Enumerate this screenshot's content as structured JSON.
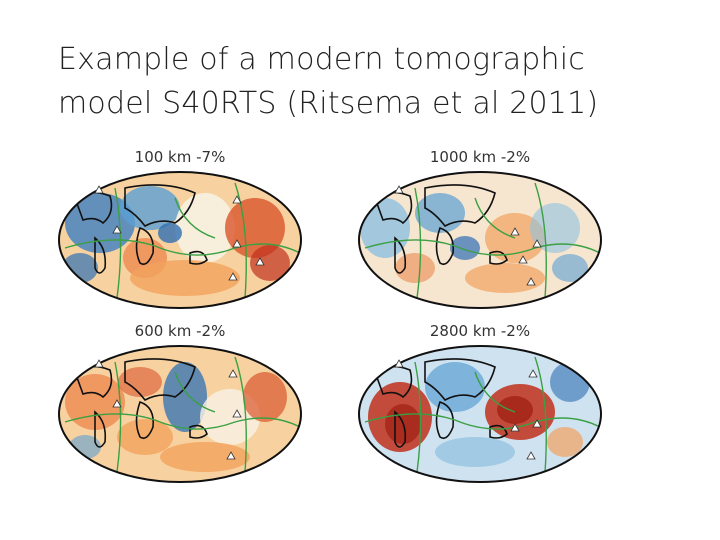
{
  "slide": {
    "title_line1": "Example of a modern tomographic",
    "title_line2": "model S40RTS (Ritsema et al 2011)"
  },
  "maps": [
    {
      "id": "m100",
      "label": "100 km -7%"
    },
    {
      "id": "m1000",
      "label": "1000 km -2%"
    },
    {
      "id": "m600",
      "label": "600 km -2%"
    },
    {
      "id": "m2800",
      "label": "2800 km -2%"
    }
  ],
  "colors": {
    "slow": "#c0301c",
    "slow_light": "#f2a25e",
    "neutral": "#f7f3e6",
    "fast_light": "#8fc1e0",
    "fast": "#2f6fb3",
    "plate_boundary": "#3aa043",
    "coastline": "#111111"
  },
  "icons": {
    "hotspot": "triangle-hotspot-icon"
  }
}
